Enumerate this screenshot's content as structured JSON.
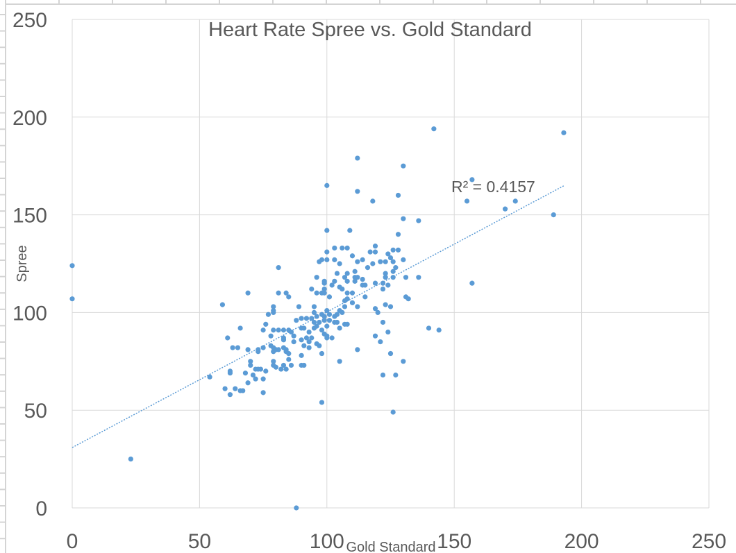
{
  "chart_data": {
    "type": "scatter",
    "title": "Heart Rate Spree vs. Gold Standard",
    "xlabel": "Gold Standard",
    "ylabel": "Spree",
    "xlim": [
      0,
      250
    ],
    "ylim": [
      0,
      250
    ],
    "xticks": [
      "0",
      "50",
      "100",
      "150",
      "200",
      "250"
    ],
    "yticks": [
      "0",
      "50",
      "100",
      "150",
      "200",
      "250"
    ],
    "grid": true,
    "legend": "none",
    "marker_color": "#5B9BD5",
    "trendline": {
      "type": "linear",
      "slope": 0.694,
      "intercept": 30.9,
      "x_range": [
        0,
        193
      ],
      "style": "dotted",
      "label": "R² = 0.4157"
    },
    "points": [
      [
        0,
        124
      ],
      [
        0,
        107
      ],
      [
        23,
        25
      ],
      [
        88,
        0
      ],
      [
        100,
        165
      ],
      [
        112,
        179
      ],
      [
        130,
        175
      ],
      [
        142,
        194
      ],
      [
        193,
        192
      ],
      [
        157,
        168
      ],
      [
        112,
        162
      ],
      [
        128,
        160
      ],
      [
        118,
        157
      ],
      [
        155,
        157
      ],
      [
        174,
        157
      ],
      [
        170,
        153
      ],
      [
        189,
        150
      ],
      [
        130,
        148
      ],
      [
        136,
        147
      ],
      [
        157,
        115
      ],
      [
        140,
        92
      ],
      [
        144,
        91
      ],
      [
        100,
        142
      ],
      [
        109,
        142
      ],
      [
        128,
        140
      ],
      [
        103,
        133
      ],
      [
        106,
        133
      ],
      [
        108,
        133
      ],
      [
        100,
        131
      ],
      [
        119,
        134
      ],
      [
        117,
        131
      ],
      [
        119,
        131
      ],
      [
        126,
        132
      ],
      [
        128,
        132
      ],
      [
        124,
        130
      ],
      [
        110,
        129
      ],
      [
        97,
        126
      ],
      [
        98,
        127
      ],
      [
        100,
        127
      ],
      [
        103,
        127
      ],
      [
        105,
        125
      ],
      [
        112,
        126
      ],
      [
        114,
        127
      ],
      [
        116,
        123
      ],
      [
        118,
        125
      ],
      [
        121,
        126
      ],
      [
        123,
        126
      ],
      [
        125,
        128
      ],
      [
        126,
        126
      ],
      [
        130,
        127
      ],
      [
        127,
        123
      ],
      [
        126,
        121
      ],
      [
        123,
        120
      ],
      [
        123,
        118
      ],
      [
        126,
        118
      ],
      [
        131,
        118
      ],
      [
        136,
        118
      ],
      [
        104,
        120
      ],
      [
        108,
        120
      ],
      [
        111,
        121
      ],
      [
        111,
        118
      ],
      [
        112,
        118
      ],
      [
        96,
        118
      ],
      [
        107,
        118
      ],
      [
        99,
        116
      ],
      [
        99,
        115
      ],
      [
        103,
        116
      ],
      [
        102,
        114
      ],
      [
        108,
        116
      ],
      [
        111,
        116
      ],
      [
        114,
        117
      ],
      [
        114,
        114
      ],
      [
        115,
        114
      ],
      [
        119,
        115
      ],
      [
        122,
        115
      ],
      [
        122,
        112
      ],
      [
        124,
        114
      ],
      [
        94,
        112
      ],
      [
        96,
        110
      ],
      [
        98,
        110
      ],
      [
        99,
        112
      ],
      [
        99,
        110
      ],
      [
        105,
        113
      ],
      [
        106,
        112
      ],
      [
        108,
        110
      ],
      [
        110,
        110
      ],
      [
        115,
        108
      ],
      [
        101,
        108
      ],
      [
        107,
        106
      ],
      [
        108,
        107
      ],
      [
        110,
        105
      ],
      [
        112,
        103
      ],
      [
        107,
        103
      ],
      [
        131,
        108
      ],
      [
        132,
        107
      ],
      [
        119,
        102
      ],
      [
        120,
        100
      ],
      [
        123,
        104
      ],
      [
        125,
        103
      ],
      [
        122,
        95
      ],
      [
        124,
        90
      ],
      [
        119,
        88
      ],
      [
        121,
        85
      ],
      [
        112,
        81
      ],
      [
        125,
        79
      ],
      [
        130,
        75
      ],
      [
        122,
        68
      ],
      [
        127,
        68
      ],
      [
        105,
        75
      ],
      [
        98,
        54
      ],
      [
        126,
        49
      ],
      [
        95,
        103
      ],
      [
        95,
        100
      ],
      [
        89,
        103
      ],
      [
        88,
        96
      ],
      [
        90,
        97
      ],
      [
        92,
        97
      ],
      [
        94,
        97
      ],
      [
        95,
        95
      ],
      [
        96,
        98
      ],
      [
        98,
        99
      ],
      [
        99,
        98
      ],
      [
        100,
        101
      ],
      [
        101,
        99
      ],
      [
        103,
        98
      ],
      [
        104,
        99
      ],
      [
        105,
        101
      ],
      [
        106,
        100
      ],
      [
        97,
        95
      ],
      [
        99,
        96
      ],
      [
        101,
        96
      ],
      [
        103,
        95
      ],
      [
        104,
        95
      ],
      [
        107,
        94
      ],
      [
        108,
        94
      ],
      [
        100,
        93
      ],
      [
        105,
        92
      ],
      [
        90,
        92
      ],
      [
        91,
        92
      ],
      [
        93,
        90
      ],
      [
        95,
        92
      ],
      [
        96,
        93
      ],
      [
        98,
        91
      ],
      [
        99,
        89
      ],
      [
        100,
        88
      ],
      [
        100,
        87
      ],
      [
        102,
        87
      ],
      [
        90,
        86
      ],
      [
        92,
        87
      ],
      [
        93,
        85
      ],
      [
        94,
        87
      ],
      [
        91,
        83
      ],
      [
        93,
        82
      ],
      [
        96,
        84
      ],
      [
        97,
        83
      ],
      [
        98,
        79
      ],
      [
        90,
        78
      ],
      [
        90,
        73
      ],
      [
        91,
        73
      ],
      [
        81,
        123
      ],
      [
        69,
        110
      ],
      [
        84,
        110
      ],
      [
        85,
        108
      ],
      [
        81,
        110
      ],
      [
        59,
        104
      ],
      [
        79,
        103
      ],
      [
        79,
        101
      ],
      [
        79,
        100
      ],
      [
        77,
        99
      ],
      [
        66,
        92
      ],
      [
        61,
        87
      ],
      [
        63,
        82
      ],
      [
        65,
        82
      ],
      [
        69,
        81
      ],
      [
        73,
        81
      ],
      [
        75,
        82
      ],
      [
        73,
        80
      ],
      [
        75,
        91
      ],
      [
        76,
        94
      ],
      [
        78,
        88
      ],
      [
        79,
        91
      ],
      [
        81,
        91
      ],
      [
        83,
        91
      ],
      [
        85,
        91
      ],
      [
        86,
        90
      ],
      [
        83,
        87
      ],
      [
        87,
        88
      ],
      [
        87,
        85
      ],
      [
        78,
        83
      ],
      [
        79,
        82
      ],
      [
        79,
        80
      ],
      [
        80,
        81
      ],
      [
        81,
        81
      ],
      [
        83,
        82
      ],
      [
        83,
        86
      ],
      [
        84,
        81
      ],
      [
        84,
        80
      ],
      [
        85,
        79
      ],
      [
        79,
        75
      ],
      [
        79,
        73
      ],
      [
        80,
        72
      ],
      [
        83,
        73
      ],
      [
        82,
        71
      ],
      [
        84,
        71
      ],
      [
        85,
        76
      ],
      [
        86,
        73
      ],
      [
        70,
        75
      ],
      [
        70,
        73
      ],
      [
        72,
        71
      ],
      [
        73,
        71
      ],
      [
        74,
        71
      ],
      [
        76,
        70
      ],
      [
        68,
        69
      ],
      [
        71,
        68
      ],
      [
        72,
        66
      ],
      [
        75,
        66
      ],
      [
        62,
        70
      ],
      [
        62,
        69
      ],
      [
        54,
        67
      ],
      [
        60,
        61
      ],
      [
        62,
        58
      ],
      [
        64,
        61
      ],
      [
        66,
        60
      ],
      [
        67,
        60
      ],
      [
        69,
        64
      ],
      [
        75,
        59
      ]
    ]
  }
}
